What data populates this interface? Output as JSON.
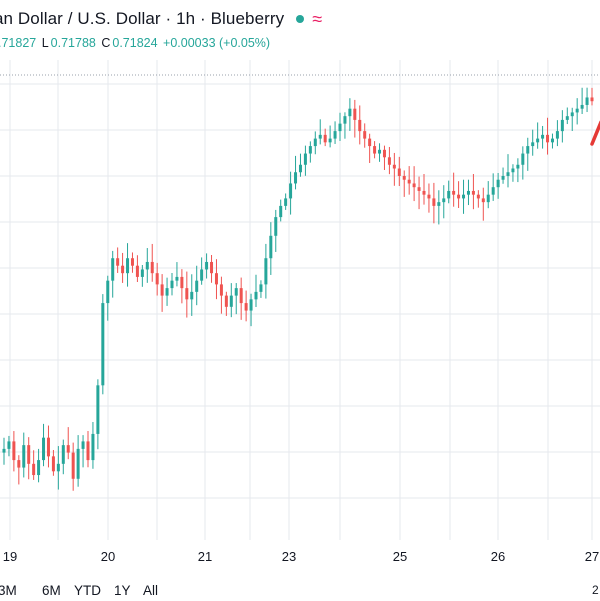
{
  "header": {
    "title": "an Dollar / U.S. Dollar · 1h · Blueberry",
    "ohlc": [
      {
        "label": "",
        "value": ".71827"
      },
      {
        "label": "L",
        "value": "0.71788"
      },
      {
        "label": "C",
        "value": "0.71824"
      },
      {
        "label": "",
        "value": "+0.00033 (+0.05%)"
      }
    ],
    "status_color": "#26a69a",
    "indicator_icon": "wavy-approx-icon",
    "indicator_color": "#e91e63"
  },
  "chart_data": {
    "type": "candlestick",
    "up_color": "#26a69a",
    "down_color": "#ef5350",
    "x_tick_labels": [
      "19",
      "20",
      "21",
      "23",
      "25",
      "26",
      "27"
    ],
    "close_profile": [
      1,
      3,
      -2,
      -4,
      2,
      -3,
      -6,
      -2,
      4,
      -1,
      -5,
      -3,
      2,
      0,
      -7,
      1,
      3,
      -2,
      5,
      18,
      40,
      46,
      52,
      50,
      48,
      52,
      50,
      47,
      49,
      51,
      48,
      45,
      42,
      44,
      46,
      47,
      44,
      41,
      43,
      46,
      49,
      51,
      48,
      45,
      42,
      39,
      42,
      44,
      40,
      38,
      41,
      43,
      45,
      52,
      58,
      63,
      66,
      68,
      72,
      75,
      77,
      80,
      82,
      84,
      85,
      83,
      84,
      86,
      88,
      90,
      92,
      89,
      86,
      84,
      82,
      80,
      81,
      79,
      77,
      76,
      74,
      73,
      72,
      71,
      70,
      69,
      68,
      66,
      67,
      68,
      70,
      69,
      68,
      69,
      70,
      69,
      68,
      67,
      69,
      71,
      73,
      74,
      75,
      76,
      77,
      80,
      82,
      83,
      84,
      85,
      83,
      84,
      86,
      89,
      90,
      91,
      92,
      93,
      95,
      94
    ]
  },
  "range_bar": {
    "items": [
      "3M",
      "6M",
      "YTD",
      "1Y",
      "All"
    ],
    "corner_digit": "2"
  }
}
